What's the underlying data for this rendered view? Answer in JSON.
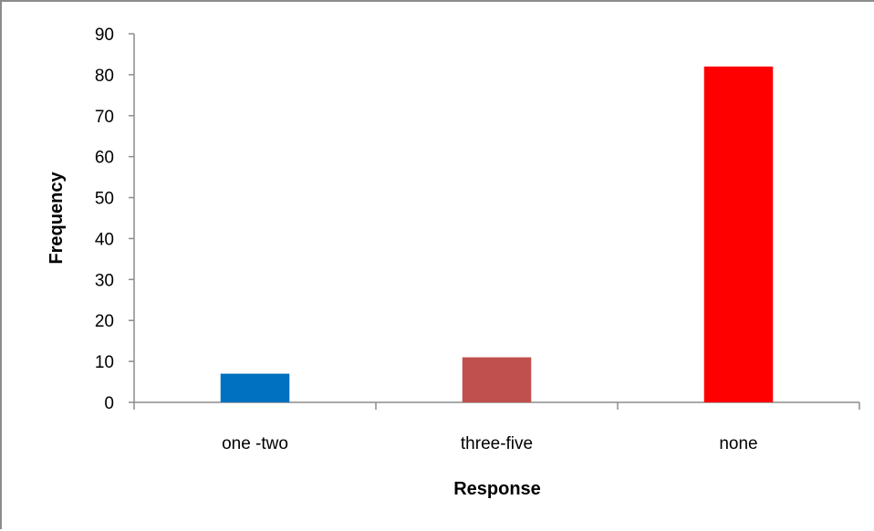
{
  "chart_data": {
    "type": "bar",
    "categories": [
      "one -two",
      "three-five",
      "none"
    ],
    "series": [
      {
        "values": [
          7,
          11,
          82
        ],
        "colors": [
          "#0070C0",
          "#C0504D",
          "#FF0000"
        ]
      }
    ],
    "title": "",
    "xlabel": "Response",
    "ylabel": "Frequency",
    "ylim": [
      0,
      90
    ],
    "yticks": [
      0,
      10,
      20,
      30,
      40,
      50,
      60,
      70,
      80,
      90
    ],
    "grid": false,
    "legend": "none"
  }
}
